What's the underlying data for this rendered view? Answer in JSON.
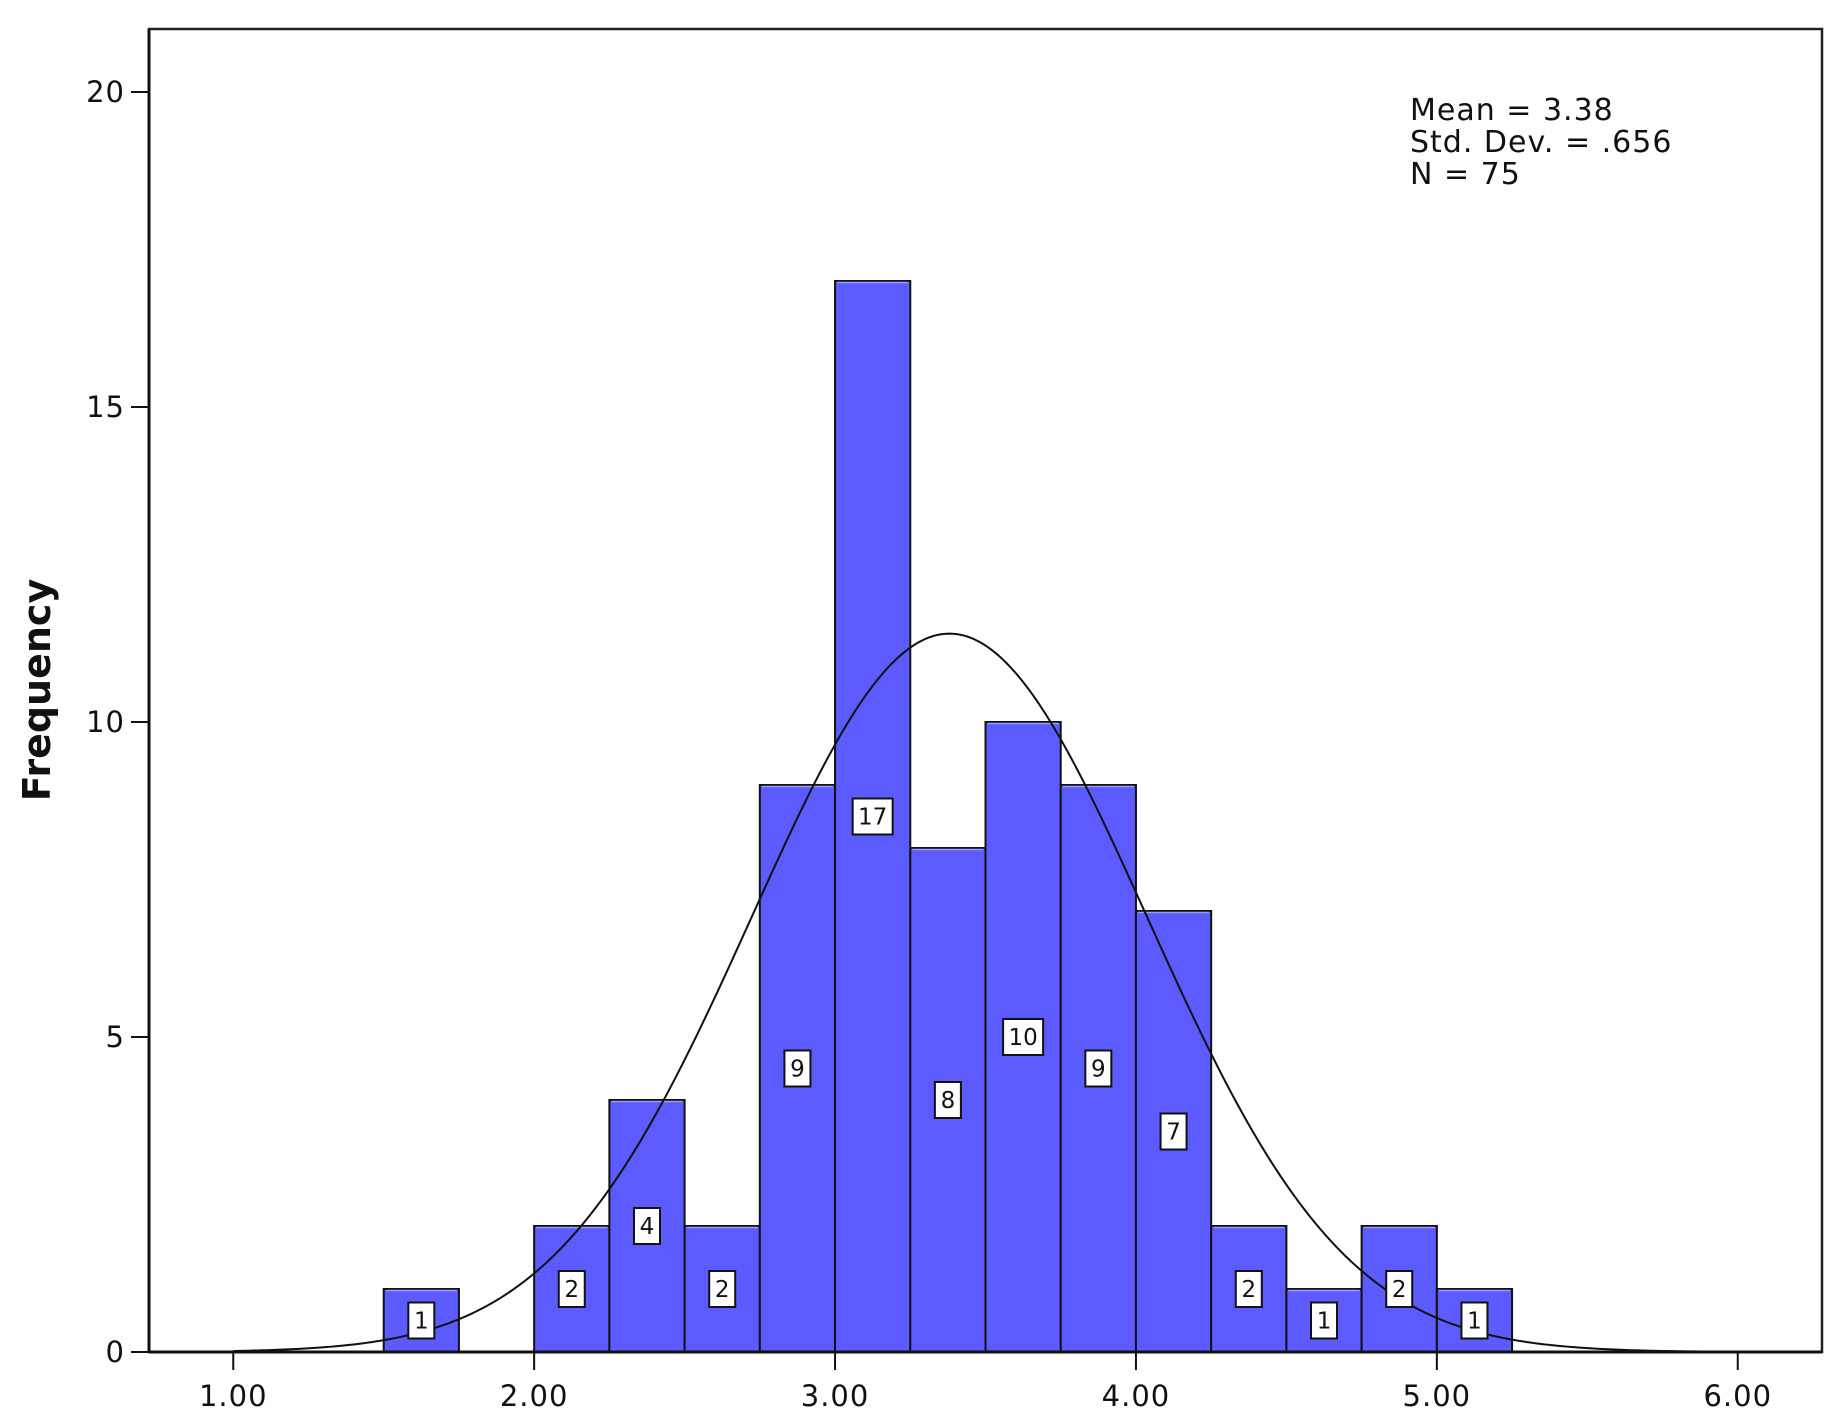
{
  "chart_data": {
    "type": "bar",
    "ylabel": "Frequency",
    "xlabel": "",
    "x_ticks": [
      "1.00",
      "2.00",
      "3.00",
      "4.00",
      "5.00",
      "6.00"
    ],
    "y_ticks": [
      "0",
      "5",
      "10",
      "15",
      "20"
    ],
    "xlim": [
      0.72,
      6.28
    ],
    "ylim": [
      0,
      21
    ],
    "bin_width": 0.25,
    "bins": [
      {
        "start": 1.5,
        "count": 1
      },
      {
        "start": 2.0,
        "count": 2
      },
      {
        "start": 2.25,
        "count": 4
      },
      {
        "start": 2.5,
        "count": 2
      },
      {
        "start": 2.75,
        "count": 9
      },
      {
        "start": 3.0,
        "count": 17
      },
      {
        "start": 3.25,
        "count": 8
      },
      {
        "start": 3.5,
        "count": 10
      },
      {
        "start": 3.75,
        "count": 9
      },
      {
        "start": 4.0,
        "count": 7
      },
      {
        "start": 4.25,
        "count": 2
      },
      {
        "start": 4.5,
        "count": 1
      },
      {
        "start": 4.75,
        "count": 2
      },
      {
        "start": 5.0,
        "count": 1
      }
    ],
    "bar_color": "#5b5bff",
    "normal_curve": {
      "mean": 3.38,
      "std": 0.656,
      "n": 75
    },
    "stats_lines": [
      "Mean = 3.38",
      "Std. Dev. = .656",
      "N = 75"
    ],
    "grid": false,
    "legend": "none"
  }
}
